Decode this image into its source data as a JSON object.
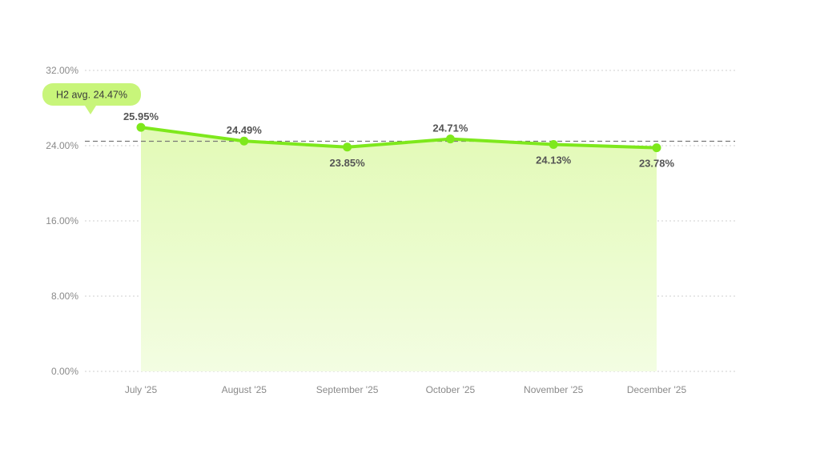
{
  "chart_data": {
    "type": "area",
    "categories": [
      "July '25",
      "August '25",
      "September '25",
      "October '25",
      "November '25",
      "December '25"
    ],
    "values": [
      25.95,
      24.49,
      23.85,
      24.71,
      24.13,
      23.78
    ],
    "value_labels": [
      "25.95%",
      "24.49%",
      "23.85%",
      "24.71%",
      "24.13%",
      "23.78%"
    ],
    "ylim": [
      0,
      32
    ],
    "yticks": [
      0,
      8,
      16,
      24,
      32
    ],
    "ytick_labels": [
      "0.00%",
      "8.00%",
      "16.00%",
      "24.00%",
      "32.00%"
    ],
    "grid": true,
    "average": {
      "value": 24.47,
      "label": "H2 avg. 24.47%"
    },
    "colors": {
      "line": "#7ee81c",
      "fill": "#eafcc8",
      "badge": "#c8f57a",
      "avg_line": "#777777",
      "grid": "#cfcfcf"
    }
  }
}
